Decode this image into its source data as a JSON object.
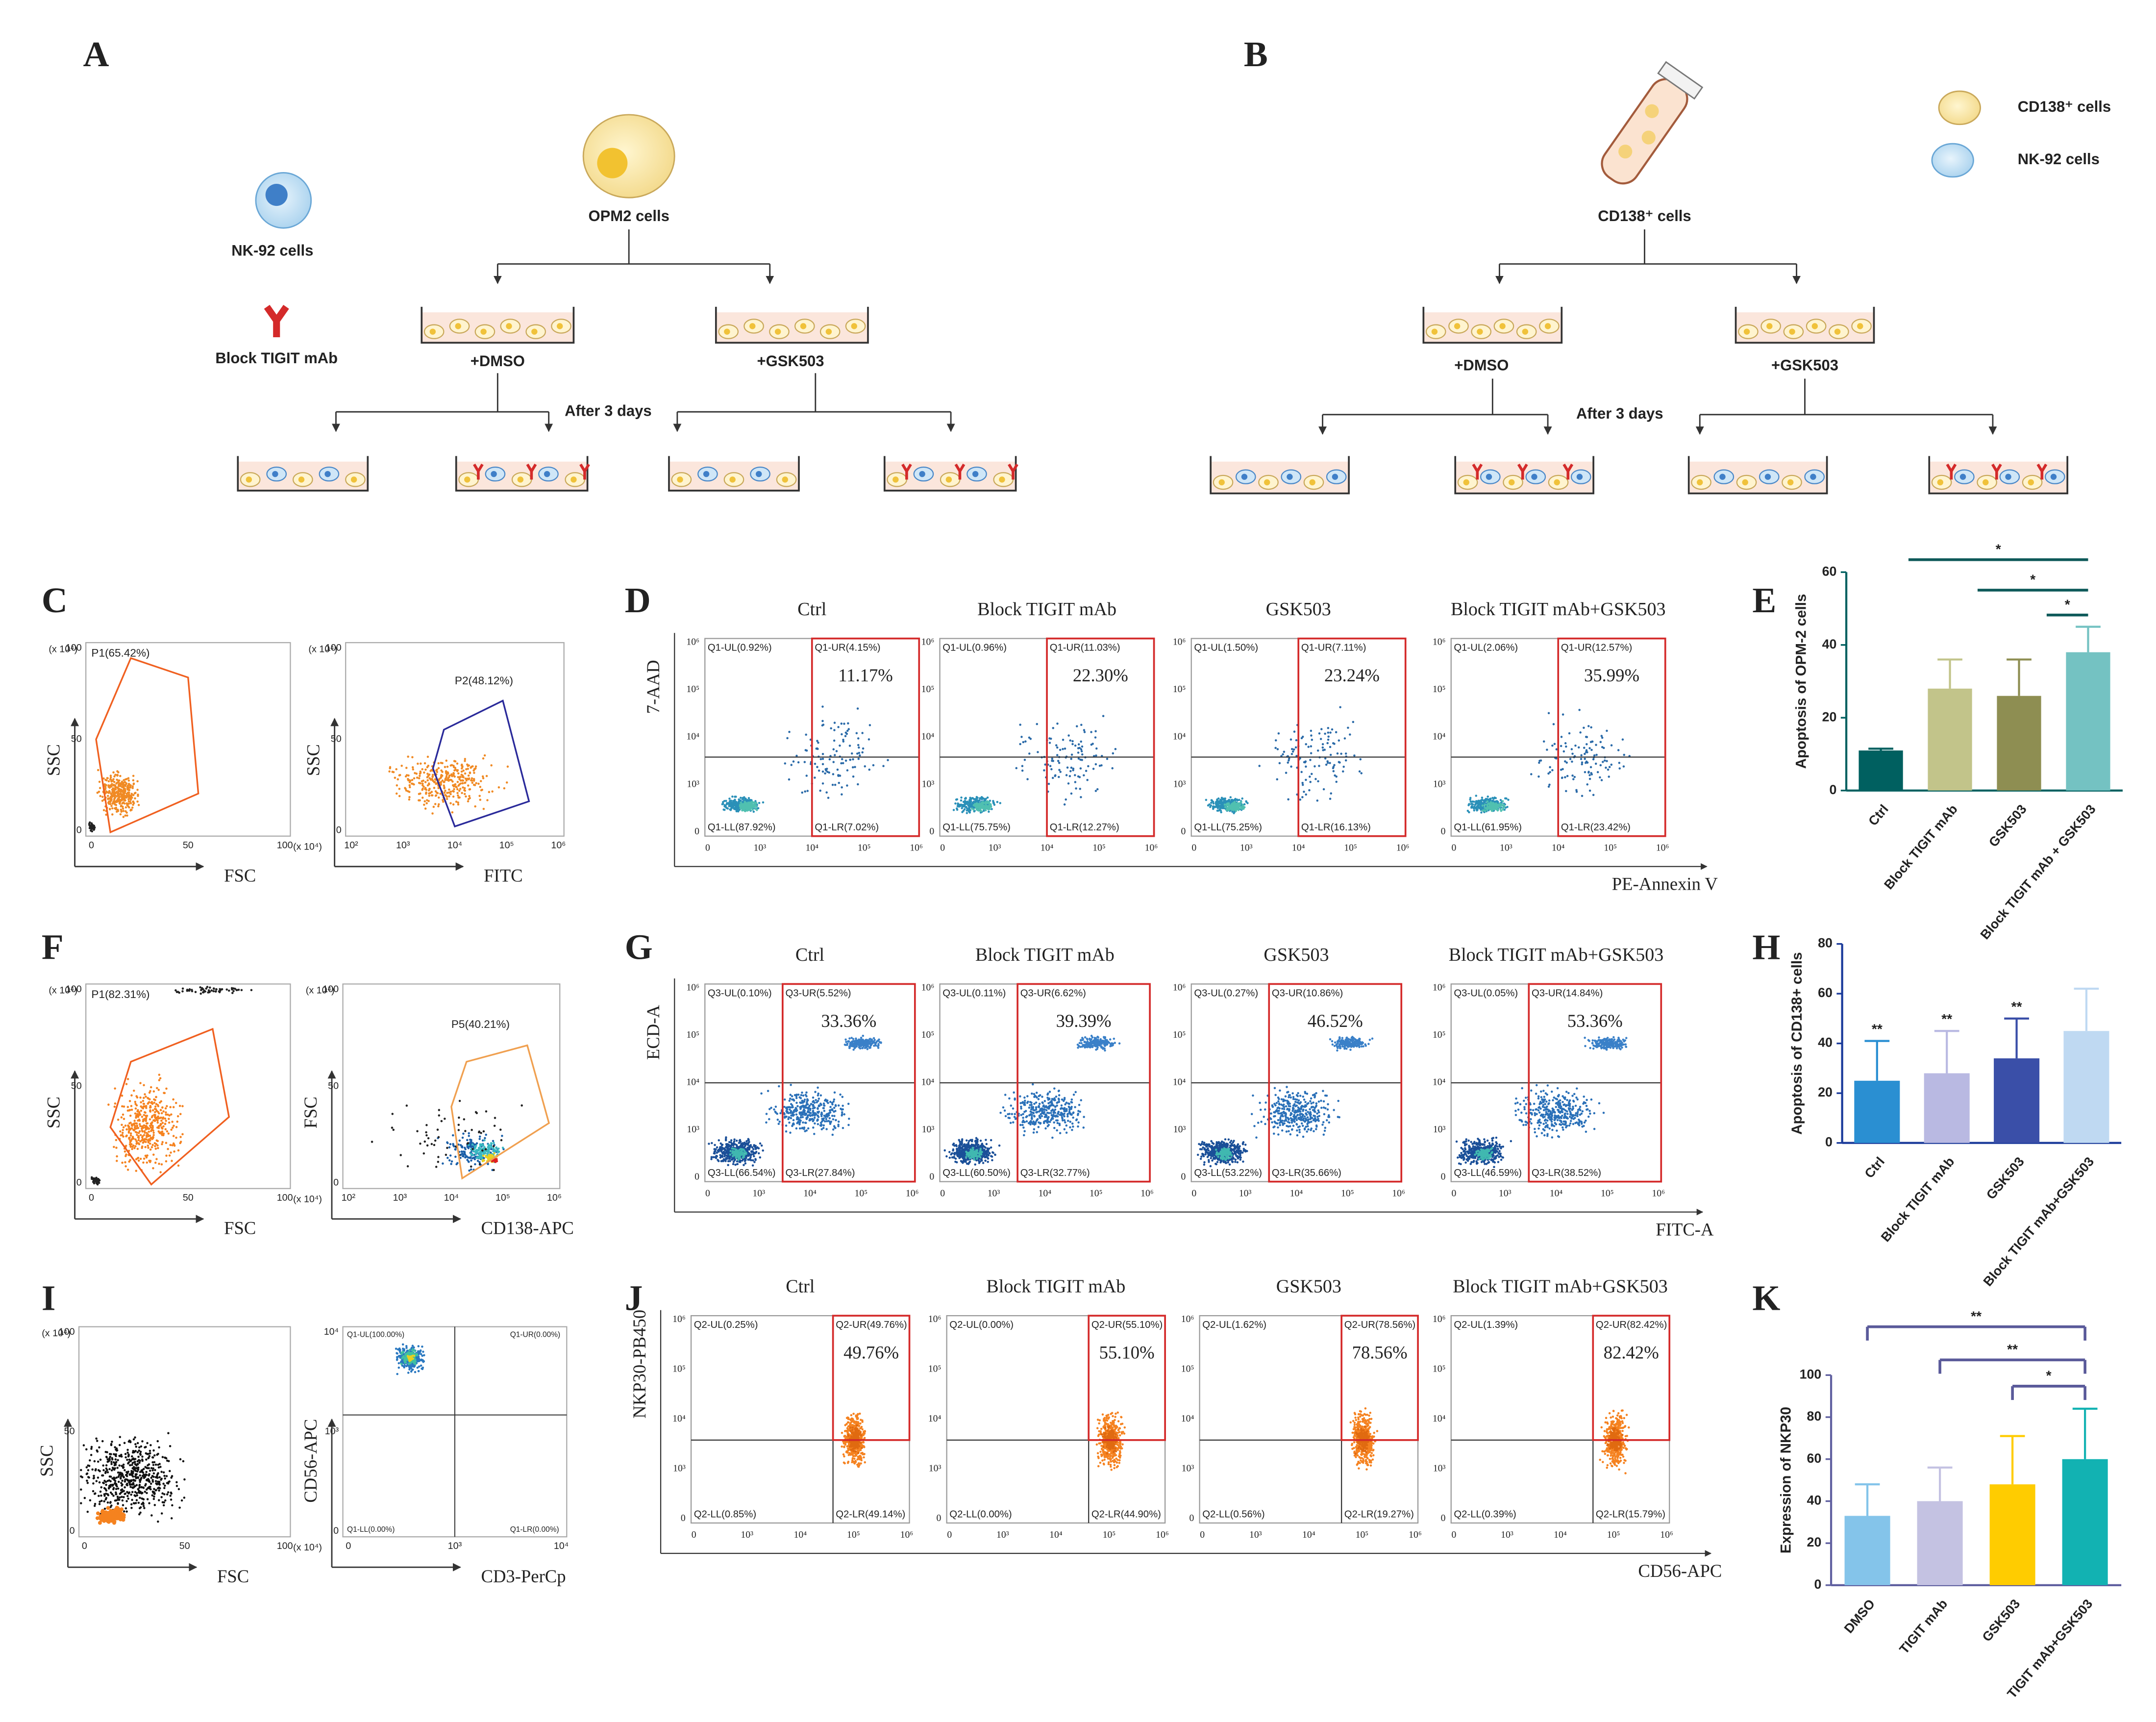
{
  "panel_letters": [
    "A",
    "B",
    "C",
    "D",
    "E",
    "F",
    "G",
    "H",
    "I",
    "J",
    "K"
  ],
  "diagram_a": {
    "effector": "NK-92 cells",
    "antibody": "Block TIGIT mAb",
    "target": "OPM2 cells",
    "arm_left": "+DMSO",
    "arm_right": "+GSK503",
    "duration": "After 3 days"
  },
  "diagram_b": {
    "legend": [
      "CD138⁺ cells",
      "NK-92 cells"
    ],
    "target": "CD138⁺ cells",
    "arm_left": "+DMSO",
    "arm_right": "+GSK503",
    "duration": "After 3 days"
  },
  "scatter_panels": {
    "C": {
      "plots": [
        {
          "y_label": "SSC",
          "x_label": "FSC",
          "gate": "P1(65.42%)",
          "y_scale": "(x 10⁴)",
          "x_scale": "(x 10⁴)",
          "x_ticks": [
            "0",
            "50",
            "100"
          ],
          "y_ticks": [
            "0",
            "50",
            "100"
          ]
        },
        {
          "y_label": "SSC",
          "x_label": "FITC",
          "gate": "P2(48.12%)",
          "y_scale": "(x 10⁴)",
          "x_ticks": [
            "10²",
            "10³",
            "10⁴",
            "10⁵",
            "10⁶"
          ],
          "y_ticks": [
            "0",
            "50",
            "100"
          ]
        }
      ]
    },
    "F": {
      "plots": [
        {
          "y_label": "SSC",
          "x_label": "FSC",
          "gate": "P1(82.31%)",
          "y_scale": "(x 10⁴)",
          "x_scale": "(x 10⁴)",
          "x_ticks": [
            "0",
            "50",
            "100"
          ],
          "y_ticks": [
            "0",
            "50",
            "100"
          ]
        },
        {
          "y_label": "FSC",
          "x_label": "CD138-APC",
          "gate": "P5(40.21%)",
          "y_scale": "(x 10⁴)",
          "x_ticks": [
            "10²",
            "10³",
            "10⁴",
            "10⁵",
            "10⁶"
          ],
          "y_ticks": [
            "0",
            "50",
            "100"
          ]
        }
      ]
    },
    "I": {
      "plots": [
        {
          "y_label": "SSC",
          "x_label": "FSC",
          "y_scale": "(x 10⁴)",
          "x_scale": "(x 10⁴)",
          "x_ticks": [
            "0",
            "50",
            "100"
          ],
          "y_ticks": [
            "0",
            "50",
            "100"
          ]
        },
        {
          "y_label": "CD56-APC",
          "x_label": "CD3-PerCp",
          "quadrants": {
            "UL": "Q1-UL(100.00%)",
            "UR": "Q1-UR(0.00%)",
            "LL": "Q1-LL(0.00%)",
            "LR": "Q1-LR(0.00%)"
          },
          "x_ticks": [
            "0",
            "10³",
            "10⁴"
          ],
          "y_ticks": [
            "0",
            "10³",
            "10⁴"
          ]
        }
      ]
    }
  },
  "flow_panels": {
    "D": {
      "y_label": "7-AAD",
      "x_label": "PE-Annexin V",
      "ticks": [
        "0",
        "10³",
        "10⁴",
        "10⁵",
        "10⁶"
      ],
      "plots": [
        {
          "title": "Ctrl",
          "quadrants": {
            "UL": "Q1-UL(0.92%)",
            "UR": "Q1-UR(4.15%)",
            "LL": "Q1-LL(87.92%)",
            "LR": "Q1-LR(7.02%)"
          },
          "gate_total": "11.17%"
        },
        {
          "title": "Block TIGIT mAb",
          "quadrants": {
            "UL": "Q1-UL(0.96%)",
            "UR": "Q1-UR(11.03%)",
            "LL": "Q1-LL(75.75%)",
            "LR": "Q1-LR(12.27%)"
          },
          "gate_total": "22.30%"
        },
        {
          "title": "GSK503",
          "quadrants": {
            "UL": "Q1-UL(1.50%)",
            "UR": "Q1-UR(7.11%)",
            "LL": "Q1-LL(75.25%)",
            "LR": "Q1-LR(16.13%)"
          },
          "gate_total": "23.24%"
        },
        {
          "title": "Block TIGIT mAb+GSK503",
          "quadrants": {
            "UL": "Q1-UL(2.06%)",
            "UR": "Q1-UR(12.57%)",
            "LL": "Q1-LL(61.95%)",
            "LR": "Q1-LR(23.42%)"
          },
          "gate_total": "35.99%"
        }
      ]
    },
    "G": {
      "y_label": "ECD-A",
      "x_label": "FITC-A",
      "ticks": [
        "0",
        "10³",
        "10⁴",
        "10⁵",
        "10⁶"
      ],
      "plots": [
        {
          "title": "Ctrl",
          "quadrants": {
            "UL": "Q3-UL(0.10%)",
            "UR": "Q3-UR(5.52%)",
            "LL": "Q3-LL(66.54%)",
            "LR": "Q3-LR(27.84%)"
          },
          "gate_total": "33.36%"
        },
        {
          "title": "Block TIGIT mAb",
          "quadrants": {
            "UL": "Q3-UL(0.11%)",
            "UR": "Q3-UR(6.62%)",
            "LL": "Q3-LL(60.50%)",
            "LR": "Q3-LR(32.77%)"
          },
          "gate_total": "39.39%"
        },
        {
          "title": "GSK503",
          "quadrants": {
            "UL": "Q3-UL(0.27%)",
            "UR": "Q3-UR(10.86%)",
            "LL": "Q3-LL(53.22%)",
            "LR": "Q3-LR(35.66%)"
          },
          "gate_total": "46.52%"
        },
        {
          "title": "Block TIGIT mAb+GSK503",
          "quadrants": {
            "UL": "Q3-UL(0.05%)",
            "UR": "Q3-UR(14.84%)",
            "LL": "Q3-LL(46.59%)",
            "LR": "Q3-LR(38.52%)"
          },
          "gate_total": "53.36%"
        }
      ]
    },
    "J": {
      "y_label": "NKP30-PB450",
      "x_label": "CD56-APC",
      "ticks": [
        "0",
        "10³",
        "10⁴",
        "10⁵",
        "10⁶"
      ],
      "plots": [
        {
          "title": "Ctrl",
          "quadrants": {
            "UL": "Q2-UL(0.25%)",
            "UR": "Q2-UR(49.76%)",
            "LL": "Q2-LL(0.85%)",
            "LR": "Q2-LR(49.14%)"
          },
          "gate_total": "49.76%"
        },
        {
          "title": "Block TIGIT mAb",
          "quadrants": {
            "UL": "Q2-UL(0.00%)",
            "UR": "Q2-UR(55.10%)",
            "LL": "Q2-LL(0.00%)",
            "LR": "Q2-LR(44.90%)"
          },
          "gate_total": "55.10%"
        },
        {
          "title": "GSK503",
          "quadrants": {
            "UL": "Q2-UL(1.62%)",
            "UR": "Q2-UR(78.56%)",
            "LL": "Q2-LL(0.56%)",
            "LR": "Q2-LR(19.27%)"
          },
          "gate_total": "78.56%"
        },
        {
          "title": "Block TIGIT mAb+GSK503",
          "quadrants": {
            "UL": "Q2-UL(1.39%)",
            "UR": "Q2-UR(82.42%)",
            "LL": "Q2-LL(0.39%)",
            "LR": "Q2-LR(15.79%)"
          },
          "gate_total": "82.42%"
        }
      ]
    }
  },
  "chart_data": [
    {
      "type": "bar",
      "y_label": "Apoptosis of OPM-2 cells",
      "categories": [
        "Ctrl",
        "Block TIGIT mAb",
        "GSK503",
        "Block TIGIT mAb + GSK503"
      ],
      "values": [
        11,
        28,
        26,
        38
      ],
      "errors": [
        0.5,
        8,
        10,
        7
      ],
      "colors": [
        "#006060",
        "#c2c48a",
        "#8e8e52",
        "#74c2c2"
      ],
      "axis_color": "#006060",
      "ylim": [
        0,
        60
      ],
      "yticks": [
        0,
        20,
        40,
        60
      ],
      "significance": [
        "*",
        "*",
        "*"
      ]
    },
    {
      "type": "bar",
      "y_label": "Apoptosis of CD138+ cells",
      "categories": [
        "Ctrl",
        "Block TIGIT mAb",
        "GSK503",
        "Block TIGIT mAb+GSK503"
      ],
      "values": [
        25,
        28,
        34,
        45
      ],
      "errors": [
        16,
        17,
        16,
        17
      ],
      "colors": [
        "#2a8fd2",
        "#b9b9e2",
        "#3a4fa8",
        "#bfd9f2"
      ],
      "axis_color": "#1a3a9a",
      "ylim": [
        0,
        80
      ],
      "yticks": [
        0,
        20,
        40,
        60,
        80
      ],
      "bar_annotations": [
        "**",
        "**",
        "**"
      ]
    },
    {
      "type": "bar",
      "y_label": "Expression of NKP30",
      "categories": [
        "DMSO",
        "TIGIT mAb",
        "GSK503",
        "TIGIT mAb+GSK503"
      ],
      "values": [
        33,
        40,
        48,
        60
      ],
      "errors": [
        15,
        16,
        23,
        24
      ],
      "colors": [
        "#84c4ea",
        "#c4c2e2",
        "#ffcc00",
        "#12b2b2"
      ],
      "axis_color": "#6060a0",
      "ylim": [
        0,
        100
      ],
      "yticks": [
        0,
        20,
        40,
        60,
        80,
        100
      ],
      "significance": [
        "**",
        "**",
        "*"
      ]
    }
  ]
}
